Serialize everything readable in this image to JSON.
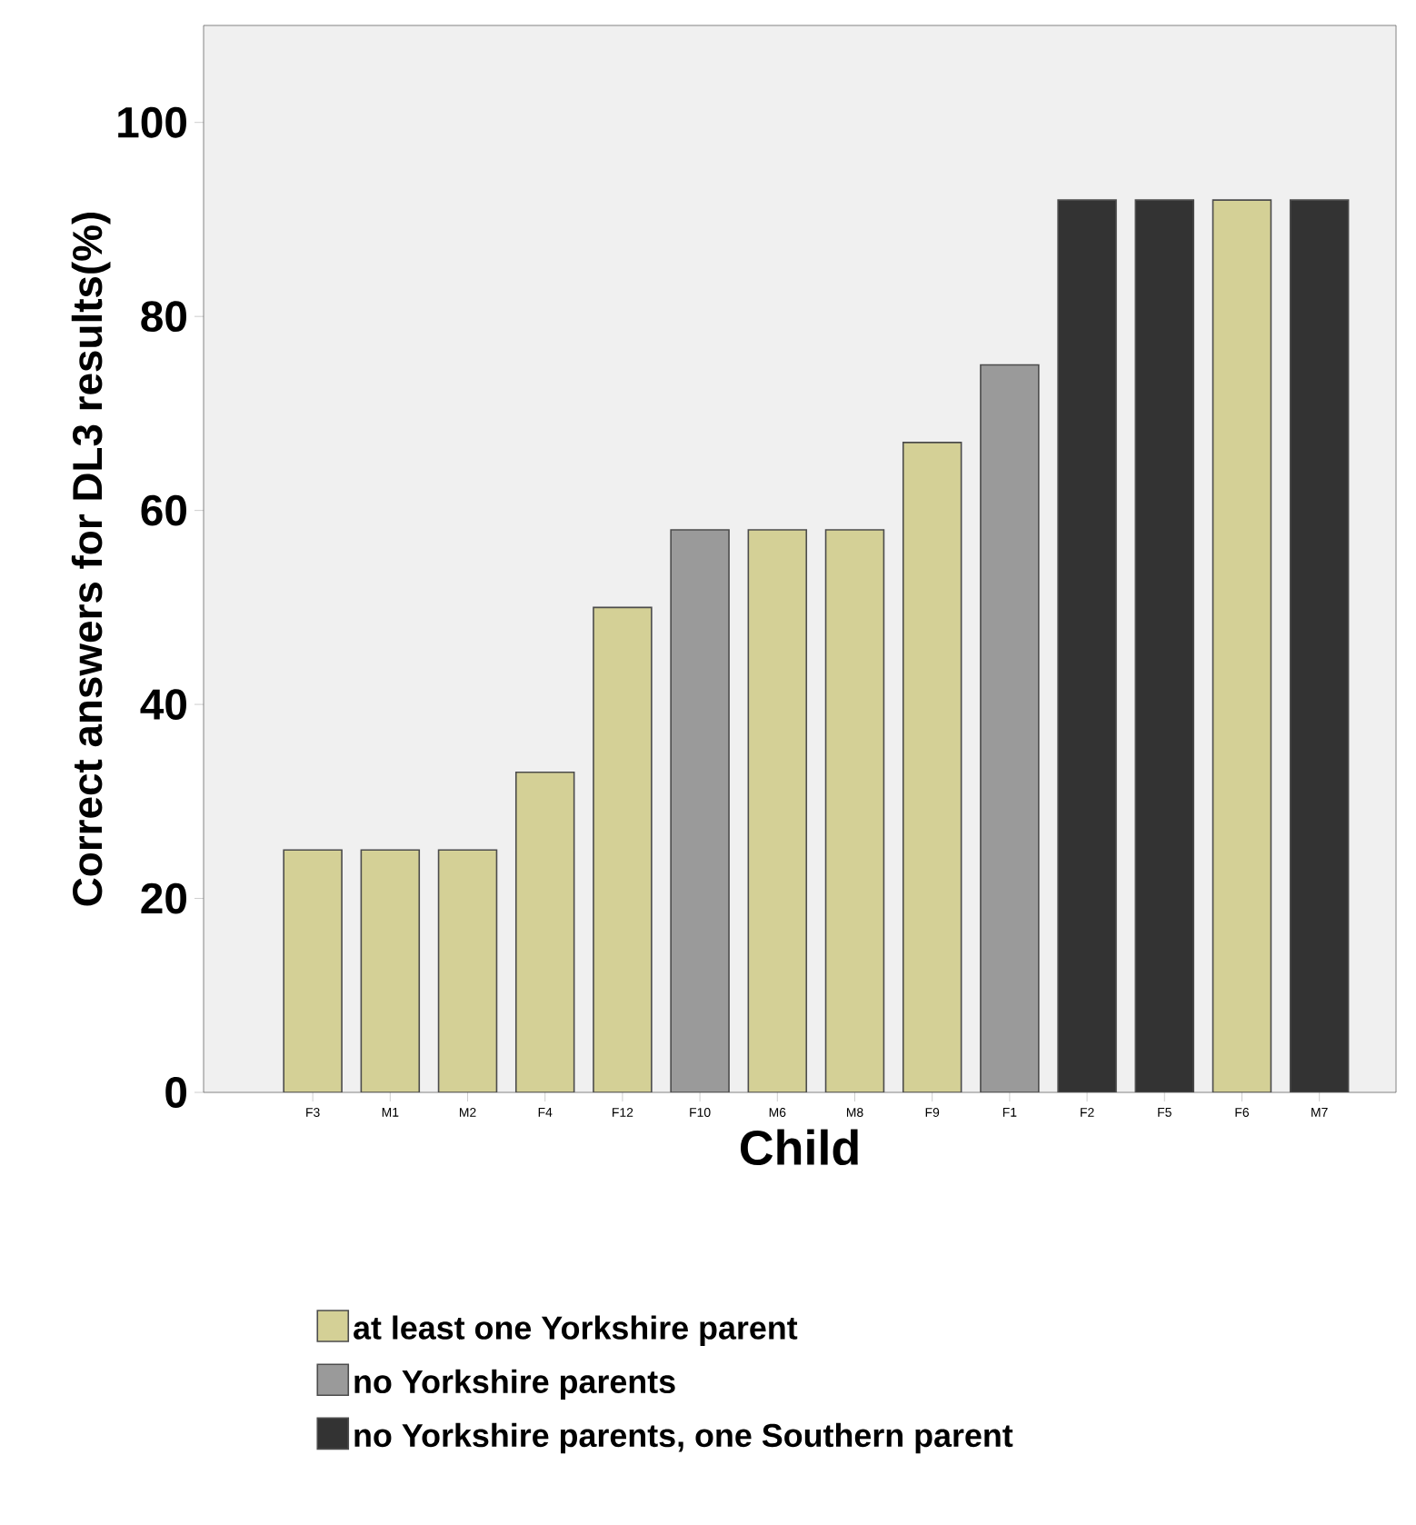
{
  "chart_data": {
    "type": "bar",
    "xlabel": "Child",
    "ylabel": "Correct answers for DL3 results(%)",
    "categories": [
      "F3",
      "M1",
      "M2",
      "F4",
      "F12",
      "F10",
      "M6",
      "M8",
      "F9",
      "F1",
      "F2",
      "F5",
      "F6",
      "M7"
    ],
    "series": [
      {
        "name": "at least one Yorkshire parent",
        "color": "#d4d096",
        "values": [
          25,
          25,
          25,
          33,
          50,
          null,
          58,
          58,
          67,
          null,
          null,
          null,
          92,
          null
        ]
      },
      {
        "name": "no Yorkshire parents",
        "color": "#9a9a9a",
        "values": [
          null,
          null,
          null,
          null,
          null,
          58,
          null,
          null,
          null,
          75,
          null,
          null,
          null,
          null
        ]
      },
      {
        "name": "no Yorkshire parents, one Southern parent",
        "color": "#333333",
        "values": [
          null,
          null,
          null,
          null,
          null,
          null,
          null,
          null,
          null,
          null,
          92,
          92,
          null,
          92
        ]
      }
    ],
    "ylim": [
      0,
      110
    ],
    "yticks": [
      0,
      20,
      40,
      60,
      80,
      100
    ],
    "legend": "bottom"
  }
}
